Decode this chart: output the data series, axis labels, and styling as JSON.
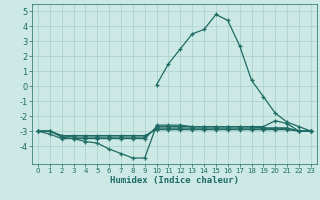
{
  "xlabel": "Humidex (Indice chaleur)",
  "xlim": [
    -0.5,
    23.5
  ],
  "ylim": [
    -5.2,
    5.5
  ],
  "xticks": [
    0,
    1,
    2,
    3,
    4,
    5,
    6,
    7,
    8,
    9,
    10,
    11,
    12,
    13,
    14,
    15,
    16,
    17,
    18,
    19,
    20,
    21,
    22,
    23
  ],
  "yticks": [
    -4,
    -3,
    -2,
    -1,
    0,
    1,
    2,
    3,
    4,
    5
  ],
  "bg_color": "#cce9e5",
  "grid_color": "#aed4ce",
  "line_color": "#1f6b65",
  "series": [
    {
      "x": [
        10,
        11,
        12,
        13,
        14,
        15,
        16,
        17,
        18,
        19,
        20,
        21,
        22,
        23
      ],
      "y": [
        0.1,
        1.5,
        2.5,
        3.5,
        3.8,
        4.8,
        4.4,
        2.7,
        0.4,
        -0.7,
        -1.8,
        -2.4,
        -2.7,
        -3.0
      ]
    },
    {
      "x": [
        0,
        1,
        2,
        3,
        4,
        5,
        6,
        7,
        8,
        9,
        10,
        11,
        12,
        13,
        14,
        15,
        16,
        17,
        18,
        19,
        20,
        21,
        22,
        23
      ],
      "y": [
        -3.0,
        -3.2,
        -3.5,
        -3.5,
        -3.7,
        -3.8,
        -4.2,
        -4.5,
        -4.8,
        -4.8,
        -2.6,
        -2.6,
        -2.6,
        -2.7,
        -2.7,
        -2.7,
        -2.7,
        -2.7,
        -2.7,
        -2.8,
        -2.8,
        -2.8,
        -3.0,
        -3.0
      ]
    },
    {
      "x": [
        0,
        1,
        2,
        3,
        4,
        5,
        6,
        7,
        8,
        9,
        10,
        11,
        12,
        13,
        14,
        15,
        16,
        17,
        18,
        19,
        20,
        21,
        22,
        23
      ],
      "y": [
        -3.0,
        -3.0,
        -3.4,
        -3.5,
        -3.5,
        -3.5,
        -3.5,
        -3.5,
        -3.5,
        -3.5,
        -2.7,
        -2.7,
        -2.7,
        -2.7,
        -2.7,
        -2.7,
        -2.7,
        -2.7,
        -2.7,
        -2.7,
        -2.3,
        -2.5,
        -3.0,
        -3.0
      ]
    },
    {
      "x": [
        0,
        1,
        2,
        3,
        4,
        5,
        6,
        7,
        8,
        9,
        10,
        11,
        12,
        13,
        14,
        15,
        16,
        17,
        18,
        19,
        20,
        21,
        22,
        23
      ],
      "y": [
        -3.0,
        -3.0,
        -3.3,
        -3.4,
        -3.4,
        -3.4,
        -3.4,
        -3.4,
        -3.4,
        -3.4,
        -2.8,
        -2.8,
        -2.8,
        -2.8,
        -2.8,
        -2.8,
        -2.8,
        -2.8,
        -2.8,
        -2.8,
        -2.8,
        -2.8,
        -3.0,
        -3.0
      ]
    },
    {
      "x": [
        0,
        1,
        2,
        3,
        4,
        5,
        6,
        7,
        8,
        9,
        10,
        11,
        12,
        13,
        14,
        15,
        16,
        17,
        18,
        19,
        20,
        21,
        22,
        23
      ],
      "y": [
        -3.0,
        -3.0,
        -3.3,
        -3.3,
        -3.3,
        -3.3,
        -3.3,
        -3.3,
        -3.3,
        -3.3,
        -2.9,
        -2.9,
        -2.9,
        -2.9,
        -2.9,
        -2.9,
        -2.9,
        -2.9,
        -2.9,
        -2.9,
        -2.9,
        -2.9,
        -3.0,
        -3.0
      ]
    }
  ]
}
